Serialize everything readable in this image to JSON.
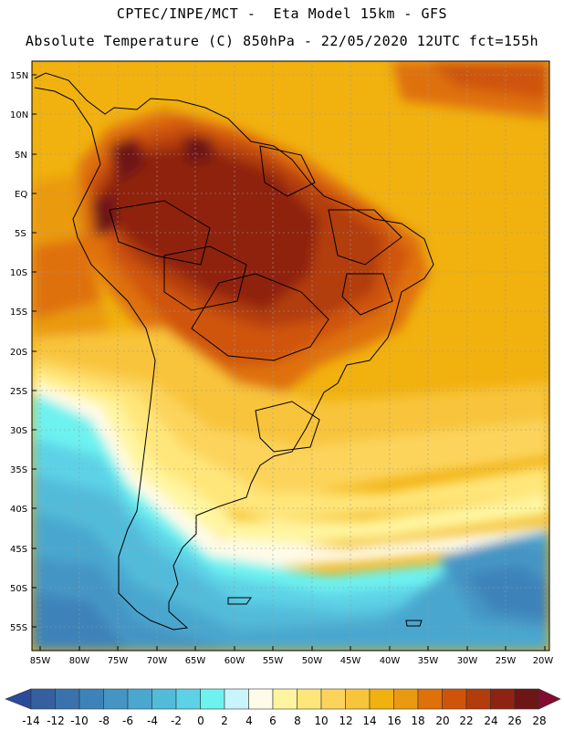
{
  "header": {
    "line1": "CPTEC/INPE/MCT -  Eta Model 15km - GFS",
    "line2": "Absolute Temperature (C) 850hPa - 22/05/2020 12UTC fct=155h"
  },
  "map": {
    "latitude_labels": [
      "15N",
      "10N",
      "5N",
      "EQ",
      "5S",
      "10S",
      "15S",
      "20S",
      "25S",
      "30S",
      "35S",
      "40S",
      "45S",
      "50S",
      "55S"
    ],
    "longitude_labels": [
      "85W",
      "80W",
      "75W",
      "70W",
      "65W",
      "60W",
      "55W",
      "50W",
      "45W",
      "40W",
      "35W",
      "30W",
      "25W",
      "20W"
    ],
    "lat_range": [
      15,
      -57
    ],
    "lon_range": [
      -86,
      -19
    ]
  },
  "colorbar": {
    "ticks": [
      "-14",
      "-12",
      "-10",
      "-8",
      "-6",
      "-4",
      "-2",
      "0",
      "2",
      "4",
      "6",
      "8",
      "10",
      "12",
      "14",
      "16",
      "18",
      "20",
      "22",
      "24",
      "26",
      "28"
    ],
    "colors": [
      "#2a4b9b",
      "#34609f",
      "#3a72ad",
      "#3d83b9",
      "#4495c4",
      "#4aa7cf",
      "#52bbda",
      "#5dd2e6",
      "#6df2f0",
      "#c9f4fb",
      "#fffbe8",
      "#fff5a0",
      "#ffe67a",
      "#fcd45b",
      "#f8c43b",
      "#f1b10f",
      "#ea9a11",
      "#df7108",
      "#cf540a",
      "#b23c0b",
      "#8f2311",
      "#6e1516",
      "#820b2f"
    ]
  }
}
